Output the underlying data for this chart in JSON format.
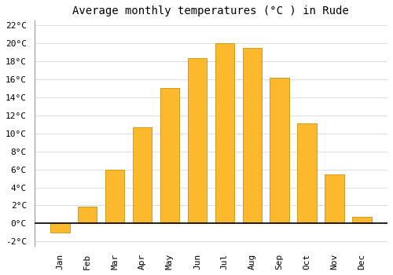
{
  "title": "Average monthly temperatures (°C ) in Rude",
  "months": [
    "Jan",
    "Feb",
    "Mar",
    "Apr",
    "May",
    "Jun",
    "Jul",
    "Aug",
    "Sep",
    "Oct",
    "Nov",
    "Dec"
  ],
  "temperatures": [
    -1.0,
    1.9,
    6.0,
    10.7,
    15.0,
    18.3,
    20.0,
    19.5,
    16.2,
    11.1,
    5.4,
    0.7
  ],
  "bar_color": "#FDB92E",
  "bar_edge_color": "#C8940A",
  "background_color": "#FFFFFF",
  "grid_color": "#DDDDDD",
  "ylim": [
    -2.5,
    22.5
  ],
  "yticks": [
    -2,
    0,
    2,
    4,
    6,
    8,
    10,
    12,
    14,
    16,
    18,
    20,
    22
  ],
  "title_fontsize": 10,
  "tick_fontsize": 8,
  "font_family": "monospace"
}
